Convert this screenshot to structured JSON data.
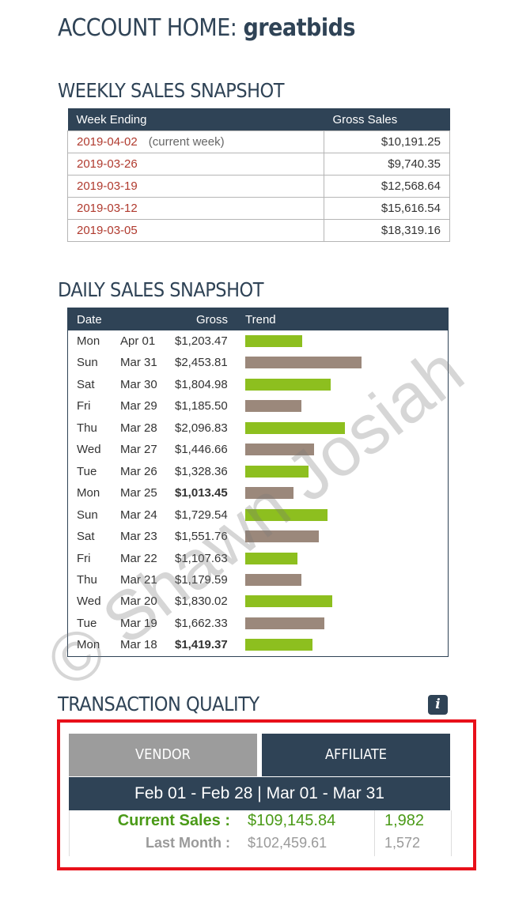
{
  "page": {
    "title_prefix": "ACCOUNT HOME:",
    "title_account": "greatbids"
  },
  "weekly": {
    "title": "WEEKLY SALES SNAPSHOT",
    "col_week": "Week Ending",
    "col_gross": "Gross Sales",
    "rows": [
      {
        "date": "2019-04-02",
        "note": "(current week)",
        "amount": "$10,191.25"
      },
      {
        "date": "2019-03-26",
        "note": "",
        "amount": "$9,740.35"
      },
      {
        "date": "2019-03-19",
        "note": "",
        "amount": "$12,568.64"
      },
      {
        "date": "2019-03-12",
        "note": "",
        "amount": "$15,616.54"
      },
      {
        "date": "2019-03-05",
        "note": "",
        "amount": "$18,319.16"
      }
    ]
  },
  "daily": {
    "title": "DAILY SALES SNAPSHOT",
    "col_date": "Date",
    "col_gross": "Gross",
    "col_trend": "Trend",
    "bar_max": 2453.81,
    "rows": [
      {
        "dow": "Mon",
        "md": "Apr 01",
        "gross": "$1,203.47",
        "value": 1203.47,
        "color": "green",
        "bold": false
      },
      {
        "dow": "Sun",
        "md": "Mar 31",
        "gross": "$2,453.81",
        "value": 2453.81,
        "color": "brown",
        "bold": false
      },
      {
        "dow": "Sat",
        "md": "Mar 30",
        "gross": "$1,804.98",
        "value": 1804.98,
        "color": "green",
        "bold": false
      },
      {
        "dow": "Fri",
        "md": "Mar 29",
        "gross": "$1,185.50",
        "value": 1185.5,
        "color": "brown",
        "bold": false
      },
      {
        "dow": "Thu",
        "md": "Mar 28",
        "gross": "$2,096.83",
        "value": 2096.83,
        "color": "green",
        "bold": false
      },
      {
        "dow": "Wed",
        "md": "Mar 27",
        "gross": "$1,446.66",
        "value": 1446.66,
        "color": "brown",
        "bold": false
      },
      {
        "dow": "Tue",
        "md": "Mar 26",
        "gross": "$1,328.36",
        "value": 1328.36,
        "color": "green",
        "bold": false
      },
      {
        "dow": "Mon",
        "md": "Mar 25",
        "gross": "$1,013.45",
        "value": 1013.45,
        "color": "brown",
        "bold": true
      },
      {
        "dow": "Sun",
        "md": "Mar 24",
        "gross": "$1,729.54",
        "value": 1729.54,
        "color": "green",
        "bold": false
      },
      {
        "dow": "Sat",
        "md": "Mar 23",
        "gross": "$1,551.76",
        "value": 1551.76,
        "color": "brown",
        "bold": false
      },
      {
        "dow": "Fri",
        "md": "Mar 22",
        "gross": "$1,107.63",
        "value": 1107.63,
        "color": "green",
        "bold": false
      },
      {
        "dow": "Thu",
        "md": "Mar 21",
        "gross": "$1,179.59",
        "value": 1179.59,
        "color": "brown",
        "bold": false
      },
      {
        "dow": "Wed",
        "md": "Mar 20",
        "gross": "$1,830.02",
        "value": 1830.02,
        "color": "green",
        "bold": false
      },
      {
        "dow": "Tue",
        "md": "Mar 19",
        "gross": "$1,662.33",
        "value": 1662.33,
        "color": "brown",
        "bold": false
      },
      {
        "dow": "Mon",
        "md": "Mar 18",
        "gross": "$1,419.37",
        "value": 1419.37,
        "color": "green",
        "bold": true
      }
    ],
    "colors": {
      "green": "#8dbf1f",
      "brown": "#9b887b"
    }
  },
  "transaction_quality": {
    "title": "TRANSACTION QUALITY",
    "info_icon": "info-icon",
    "info_glyph": "i",
    "tabs": {
      "vendor": "VENDOR",
      "affiliate": "AFFILIATE"
    },
    "range": "Feb 01 - Feb 28 | Mar 01 - Mar 31",
    "current_label": "Current Sales :",
    "current_amount": "$109,145.84",
    "current_count": "1,982",
    "last_label": "Last Month :",
    "last_amount": "$102,459.61",
    "last_count": "1,572"
  },
  "watermark": "© Shawn Josiah",
  "colors": {
    "navy": "#2f4356",
    "link_red": "#b03a2e",
    "highlight_red": "#e8101a",
    "green_text": "#4a9a17"
  }
}
